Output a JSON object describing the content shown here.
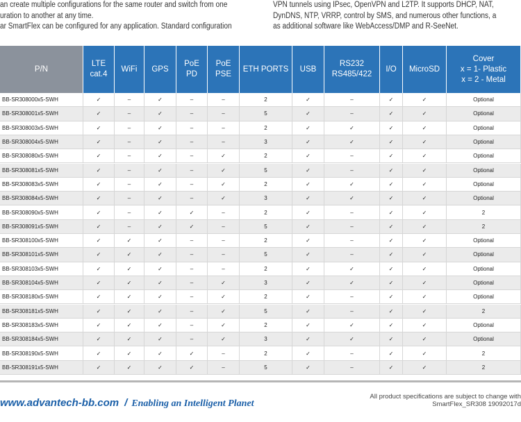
{
  "intro": {
    "left": [
      "an create multiple configurations for the same router and switch from one",
      "uration to another at any time.",
      "ar SmartFlex can be configured for any application. Standard configuration"
    ],
    "right": [
      "VPN tunnels using IPsec, OpenVPN and L2TP. It supports DHCP, NAT,",
      "DynDNS, NTP, VRRP, control by SMS, and numerous other functions, a",
      "as additional software like WebAccess/DMP and R-SeeNet."
    ]
  },
  "table": {
    "header": [
      [
        "P/N"
      ],
      [
        "LTE",
        "cat.4"
      ],
      [
        "WiFi"
      ],
      [
        "GPS"
      ],
      [
        "PoE",
        "PD"
      ],
      [
        "PoE",
        "PSE"
      ],
      [
        "ETH PORTS"
      ],
      [
        "USB"
      ],
      [
        "RS232",
        "RS485/422"
      ],
      [
        "I/O"
      ],
      [
        "MicroSD"
      ],
      [
        "Cover",
        "x = 1- Plastic",
        "x = 2 - Metal"
      ]
    ],
    "rows": [
      [
        "BB-SR308000x5-SWH",
        "✓",
        "–",
        "✓",
        "–",
        "–",
        "2",
        "✓",
        "–",
        "✓",
        "✓",
        "Optional"
      ],
      [
        "BB-SR308001x5-SWH",
        "✓",
        "–",
        "✓",
        "–",
        "–",
        "5",
        "✓",
        "–",
        "✓",
        "✓",
        "Optional"
      ],
      [
        "BB-SR308003x5-SWH",
        "✓",
        "–",
        "✓",
        "–",
        "–",
        "2",
        "✓",
        "✓",
        "✓",
        "✓",
        "Optional"
      ],
      [
        "BB-SR308004x5-SWH",
        "✓",
        "–",
        "✓",
        "–",
        "–",
        "3",
        "✓",
        "✓",
        "✓",
        "✓",
        "Optional"
      ],
      [
        "BB-SR308080x5-SWH",
        "✓",
        "–",
        "✓",
        "–",
        "✓",
        "2",
        "✓",
        "–",
        "✓",
        "✓",
        "Optional"
      ],
      [
        "BB-SR308081x5-SWH",
        "✓",
        "–",
        "✓",
        "–",
        "✓",
        "5",
        "✓",
        "–",
        "✓",
        "✓",
        "Optional"
      ],
      [
        "BB-SR308083x5-SWH",
        "✓",
        "–",
        "✓",
        "–",
        "✓",
        "2",
        "✓",
        "✓",
        "✓",
        "✓",
        "Optional"
      ],
      [
        "BB-SR308084x5-SWH",
        "✓",
        "–",
        "✓",
        "–",
        "✓",
        "3",
        "✓",
        "✓",
        "✓",
        "✓",
        "Optional"
      ],
      [
        "BB-SR308090x5-SWH",
        "✓",
        "–",
        "✓",
        "✓",
        "–",
        "2",
        "✓",
        "–",
        "✓",
        "✓",
        "2"
      ],
      [
        "BB-SR308091x5-SWH",
        "✓",
        "–",
        "✓",
        "✓",
        "–",
        "5",
        "✓",
        "–",
        "✓",
        "✓",
        "2"
      ],
      [
        "BB-SR308100x5-SWH",
        "✓",
        "✓",
        "✓",
        "–",
        "–",
        "2",
        "✓",
        "–",
        "✓",
        "✓",
        "Optional"
      ],
      [
        "BB-SR308101x5-SWH",
        "✓",
        "✓",
        "✓",
        "–",
        "–",
        "5",
        "✓",
        "–",
        "✓",
        "✓",
        "Optional"
      ],
      [
        "BB-SR308103x5-SWH",
        "✓",
        "✓",
        "✓",
        "–",
        "–",
        "2",
        "✓",
        "✓",
        "✓",
        "✓",
        "Optional"
      ],
      [
        "BB-SR308104x5-SWH",
        "✓",
        "✓",
        "✓",
        "–",
        "✓",
        "3",
        "✓",
        "✓",
        "✓",
        "✓",
        "Optional"
      ],
      [
        "BB-SR308180x5-SWH",
        "✓",
        "✓",
        "✓",
        "–",
        "✓",
        "2",
        "✓",
        "–",
        "✓",
        "✓",
        "Optional"
      ],
      [
        "BB-SR308181x5-SWH",
        "✓",
        "✓",
        "✓",
        "–",
        "✓",
        "5",
        "✓",
        "–",
        "✓",
        "✓",
        "2"
      ],
      [
        "BB-SR308183x5-SWH",
        "✓",
        "✓",
        "✓",
        "–",
        "✓",
        "2",
        "✓",
        "✓",
        "✓",
        "✓",
        "Optional"
      ],
      [
        "BB-SR308184x5-SWH",
        "✓",
        "✓",
        "✓",
        "–",
        "✓",
        "3",
        "✓",
        "✓",
        "✓",
        "✓",
        "Optional"
      ],
      [
        "BB-SR308190x5-SWH",
        "✓",
        "✓",
        "✓",
        "✓",
        "–",
        "2",
        "✓",
        "–",
        "✓",
        "✓",
        "2"
      ],
      [
        "BB-SR308191x5-SWH",
        "✓",
        "✓",
        "✓",
        "✓",
        "–",
        "5",
        "✓",
        "–",
        "✓",
        "✓",
        "2"
      ]
    ]
  },
  "footer": {
    "url": "www.advantech-bb.com",
    "separator": "/",
    "tagline": "Enabling an Intelligent Planet",
    "notice": "All product specifications are subject to change with",
    "doc_id": "SmartFlex_SR308 19092017d"
  }
}
